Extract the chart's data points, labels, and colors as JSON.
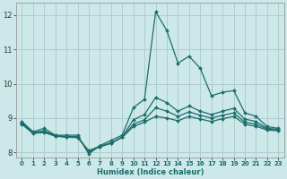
{
  "xlabel": "Humidex (Indice chaleur)",
  "bg_color": "#cce8e8",
  "grid_color": "#b0cccc",
  "line_color": "#1a6e6a",
  "xlim": [
    -0.5,
    23.5
  ],
  "ylim": [
    7.85,
    12.35
  ],
  "xticks": [
    0,
    1,
    2,
    3,
    4,
    5,
    6,
    7,
    8,
    9,
    10,
    11,
    12,
    13,
    14,
    15,
    16,
    17,
    18,
    19,
    20,
    21,
    22,
    23
  ],
  "yticks": [
    8,
    9,
    10,
    11,
    12
  ],
  "lines": [
    {
      "x": [
        0,
        1,
        2,
        3,
        4,
        5,
        6,
        7,
        8,
        9,
        10,
        11,
        12,
        13,
        14,
        15,
        16,
        17,
        18,
        19,
        20,
        21,
        22,
        23
      ],
      "y": [
        8.9,
        8.6,
        8.7,
        8.5,
        8.5,
        8.5,
        7.95,
        8.2,
        8.35,
        8.5,
        9.3,
        9.55,
        12.1,
        11.55,
        10.6,
        10.8,
        10.45,
        9.65,
        9.75,
        9.8,
        9.15,
        9.05,
        8.75,
        8.7
      ],
      "marker": "D",
      "markersize": 2.0,
      "linewidth": 0.9
    },
    {
      "x": [
        0,
        1,
        2,
        3,
        4,
        5,
        6,
        7,
        8,
        9,
        10,
        11,
        12,
        13,
        14,
        15,
        16,
        17,
        18,
        19,
        20,
        21,
        22,
        23
      ],
      "y": [
        8.82,
        8.55,
        8.58,
        8.47,
        8.44,
        8.43,
        8.05,
        8.18,
        8.28,
        8.44,
        8.75,
        8.88,
        9.05,
        9.0,
        8.92,
        9.05,
        8.97,
        8.9,
        8.98,
        9.05,
        8.82,
        8.76,
        8.65,
        8.63
      ],
      "marker": "D",
      "markersize": 2.0,
      "linewidth": 0.9
    },
    {
      "x": [
        0,
        1,
        2,
        3,
        4,
        5,
        6,
        7,
        8,
        9,
        10,
        11,
        12,
        13,
        14,
        15,
        16,
        17,
        18,
        19,
        20,
        21,
        22,
        23
      ],
      "y": [
        8.85,
        8.57,
        8.6,
        8.48,
        8.45,
        8.44,
        8.03,
        8.16,
        8.26,
        8.44,
        8.82,
        8.95,
        9.3,
        9.2,
        9.05,
        9.18,
        9.08,
        9.0,
        9.08,
        9.15,
        8.88,
        8.82,
        8.68,
        8.65
      ],
      "marker": "D",
      "markersize": 2.0,
      "linewidth": 0.9
    },
    {
      "x": [
        0,
        1,
        2,
        3,
        4,
        5,
        6,
        7,
        8,
        9,
        10,
        11,
        12,
        13,
        14,
        15,
        16,
        17,
        18,
        19,
        20,
        21,
        22,
        23
      ],
      "y": [
        8.87,
        8.58,
        8.63,
        8.49,
        8.46,
        8.46,
        8.02,
        8.17,
        8.27,
        8.45,
        8.95,
        9.1,
        9.6,
        9.45,
        9.2,
        9.35,
        9.2,
        9.1,
        9.2,
        9.28,
        8.97,
        8.9,
        8.7,
        8.67
      ],
      "marker": "D",
      "markersize": 2.0,
      "linewidth": 0.9
    }
  ]
}
